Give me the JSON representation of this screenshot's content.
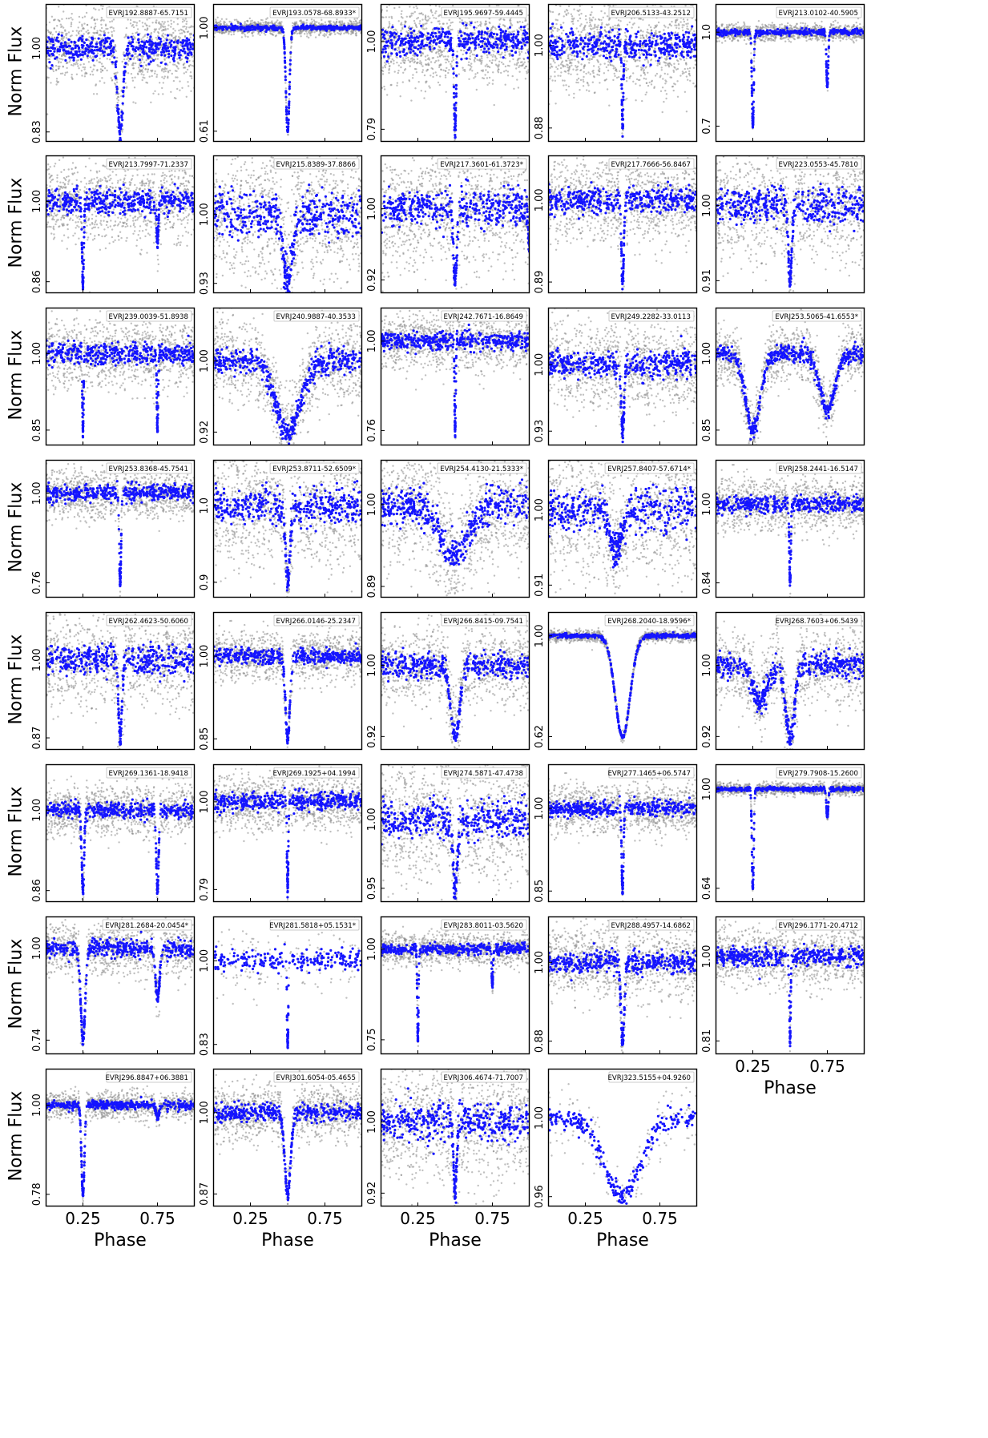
{
  "axis_labels": {
    "y": "Norm Flux",
    "x": "Phase"
  },
  "colors": {
    "binned": "#1414ff",
    "raw": "#8a8a8a",
    "frame": "#000000",
    "label_box": "#bbbbbb"
  },
  "chart_data": [
    {
      "type": "scatter",
      "title": "EVRJ192.8887-65.7151",
      "xlabel": "",
      "ylabel": "Norm Flux",
      "yticks": [
        "1.00",
        "0.83"
      ],
      "xticks": [],
      "ylim": [
        0.81,
        1.09
      ],
      "noise": 0.035,
      "dips": [
        {
          "phase": 0.5,
          "depth": 0.17,
          "width": 0.018
        }
      ],
      "grid": false
    },
    {
      "type": "scatter",
      "title": "EVRJ193.0578-68.8933*",
      "xlabel": "",
      "ylabel": "",
      "yticks": [
        "1.00",
        "0.61"
      ],
      "xticks": [],
      "ylim": [
        0.57,
        1.09
      ],
      "noise": 0.012,
      "dips": [
        {
          "phase": 0.5,
          "depth": 0.39,
          "width": 0.012
        }
      ],
      "grid": false
    },
    {
      "type": "scatter",
      "title": "EVRJ195.9697-59.4445",
      "xlabel": "",
      "ylabel": "",
      "yticks": [
        "1.00",
        "0.79"
      ],
      "xticks": [],
      "ylim": [
        0.76,
        1.09
      ],
      "noise": 0.045,
      "dips": [
        {
          "phase": 0.5,
          "depth": 0.21,
          "width": 0.007
        }
      ],
      "grid": false
    },
    {
      "type": "scatter",
      "title": "EVRJ206.5133-43.2512",
      "xlabel": "",
      "ylabel": "",
      "yticks": [
        "1.00",
        "0.88"
      ],
      "xticks": [],
      "ylim": [
        0.86,
        1.06
      ],
      "noise": 0.03,
      "dips": [
        {
          "phase": 0.5,
          "depth": 0.12,
          "width": 0.005
        }
      ],
      "grid": false
    },
    {
      "type": "scatter",
      "title": "EVRJ213.0102-40.5905",
      "xlabel": "",
      "ylabel": "",
      "yticks": [
        "1.0",
        "0.7"
      ],
      "xticks": [],
      "ylim": [
        0.65,
        1.09
      ],
      "noise": 0.012,
      "dips": [
        {
          "phase": 0.25,
          "depth": 0.3,
          "width": 0.006
        },
        {
          "phase": 0.75,
          "depth": 0.17,
          "width": 0.006
        }
      ],
      "grid": false
    },
    {
      "type": "scatter",
      "title": "EVRJ213.7997-71.2337",
      "xlabel": "",
      "ylabel": "Norm Flux",
      "yticks": [
        "1.00",
        "0.86"
      ],
      "xticks": [],
      "ylim": [
        0.84,
        1.08
      ],
      "noise": 0.03,
      "dips": [
        {
          "phase": 0.25,
          "depth": 0.14,
          "width": 0.006
        },
        {
          "phase": 0.75,
          "depth": 0.07,
          "width": 0.006
        }
      ],
      "grid": false
    },
    {
      "type": "scatter",
      "title": "EVRJ215.8389-37.8866",
      "xlabel": "",
      "ylabel": "",
      "yticks": [
        "1.00",
        "0.93"
      ],
      "xticks": [],
      "ylim": [
        0.92,
        1.06
      ],
      "noise": 0.03,
      "dips": [
        {
          "phase": 0.5,
          "depth": 0.07,
          "width": 0.03
        }
      ],
      "grid": false
    },
    {
      "type": "scatter",
      "title": "EVRJ217.3601-61.3723*",
      "xlabel": "",
      "ylabel": "",
      "yticks": [
        "1.00",
        "0.92"
      ],
      "xticks": [],
      "ylim": [
        0.905,
        1.06
      ],
      "noise": 0.03,
      "dips": [
        {
          "phase": 0.5,
          "depth": 0.08,
          "width": 0.012
        },
        {
          "phase": 1.0,
          "depth": 0.04,
          "width": 0.01
        }
      ],
      "grid": false
    },
    {
      "type": "scatter",
      "title": "EVRJ217.7666-56.8467",
      "xlabel": "",
      "ylabel": "",
      "yticks": [
        "1.00",
        "0.89"
      ],
      "xticks": [],
      "ylim": [
        0.875,
        1.06
      ],
      "noise": 0.025,
      "dips": [
        {
          "phase": 0.5,
          "depth": 0.11,
          "width": 0.008
        }
      ],
      "grid": false
    },
    {
      "type": "scatter",
      "title": "EVRJ223.0553-45.7810",
      "xlabel": "",
      "ylabel": "",
      "yticks": [
        "1.00",
        "0.91"
      ],
      "xticks": [],
      "ylim": [
        0.895,
        1.06
      ],
      "noise": 0.03,
      "dips": [
        {
          "phase": 0.5,
          "depth": 0.09,
          "width": 0.012
        }
      ],
      "grid": false
    },
    {
      "type": "scatter",
      "title": "EVRJ239.0039-51.8938",
      "xlabel": "",
      "ylabel": "Norm Flux",
      "yticks": [
        "1.00",
        "0.85"
      ],
      "xticks": [],
      "ylim": [
        0.82,
        1.09
      ],
      "noise": 0.03,
      "dips": [
        {
          "phase": 0.25,
          "depth": 0.15,
          "width": 0.004
        },
        {
          "phase": 0.75,
          "depth": 0.15,
          "width": 0.004
        }
      ],
      "grid": false
    },
    {
      "type": "scatter",
      "title": "EVRJ240.9887-40.3533",
      "xlabel": "",
      "ylabel": "",
      "yticks": [
        "1.00",
        "0.92"
      ],
      "xticks": [],
      "ylim": [
        0.905,
        1.06
      ],
      "noise": 0.02,
      "dips": [
        {
          "phase": 0.5,
          "depth": 0.08,
          "width": 0.08
        }
      ],
      "grid": false
    },
    {
      "type": "scatter",
      "title": "EVRJ242.7671-16.8649",
      "xlabel": "",
      "ylabel": "",
      "yticks": [
        "1.00",
        "0.76"
      ],
      "xticks": [],
      "ylim": [
        0.72,
        1.09
      ],
      "noise": 0.035,
      "dips": [
        {
          "phase": 0.5,
          "depth": 0.24,
          "width": 0.004
        }
      ],
      "grid": false
    },
    {
      "type": "scatter",
      "title": "EVRJ249.2282-33.0113",
      "xlabel": "",
      "ylabel": "",
      "yticks": [
        "1.00",
        "0.93"
      ],
      "xticks": [],
      "ylim": [
        0.915,
        1.06
      ],
      "noise": 0.02,
      "dips": [
        {
          "phase": 0.5,
          "depth": 0.07,
          "width": 0.01
        }
      ],
      "grid": false
    },
    {
      "type": "scatter",
      "title": "EVRJ253.5065-41.6553*",
      "xlabel": "",
      "ylabel": "",
      "yticks": [
        "1.00",
        "0.85"
      ],
      "xticks": [],
      "ylim": [
        0.82,
        1.09
      ],
      "noise": 0.025,
      "dips": [
        {
          "phase": 0.25,
          "depth": 0.15,
          "width": 0.05
        },
        {
          "phase": 0.75,
          "depth": 0.11,
          "width": 0.05
        }
      ],
      "grid": false
    },
    {
      "type": "scatter",
      "title": "EVRJ253.8368-45.7541",
      "xlabel": "",
      "ylabel": "Norm Flux",
      "yticks": [
        "1.00",
        "0.76"
      ],
      "xticks": [],
      "ylim": [
        0.72,
        1.09
      ],
      "noise": 0.03,
      "dips": [
        {
          "phase": 0.5,
          "depth": 0.24,
          "width": 0.006
        }
      ],
      "grid": false
    },
    {
      "type": "scatter",
      "title": "EVRJ253.8711-52.6509*",
      "xlabel": "",
      "ylabel": "",
      "yticks": [
        "1.0",
        "0.9"
      ],
      "xticks": [],
      "ylim": [
        0.88,
        1.06
      ],
      "noise": 0.035,
      "dips": [
        {
          "phase": 0.5,
          "depth": 0.1,
          "width": 0.015
        }
      ],
      "grid": false
    },
    {
      "type": "scatter",
      "title": "EVRJ254.4130-21.5333*",
      "xlabel": "",
      "ylabel": "",
      "yticks": [
        "1.00",
        "0.89"
      ],
      "xticks": [],
      "ylim": [
        0.875,
        1.06
      ],
      "noise": 0.035,
      "dips": [
        {
          "phase": 0.5,
          "depth": 0.07,
          "width": 0.09
        }
      ],
      "grid": false
    },
    {
      "type": "scatter",
      "title": "EVRJ257.8407-57.6714*",
      "xlabel": "",
      "ylabel": "",
      "yticks": [
        "1.00",
        "0.91"
      ],
      "xticks": [],
      "ylim": [
        0.895,
        1.06
      ],
      "noise": 0.035,
      "dips": [
        {
          "phase": 0.45,
          "depth": 0.05,
          "width": 0.04
        }
      ],
      "grid": false
    },
    {
      "type": "scatter",
      "title": "EVRJ258.2441-16.5147",
      "xlabel": "",
      "ylabel": "",
      "yticks": [
        "1.00",
        "0.84"
      ],
      "xticks": [],
      "ylim": [
        0.81,
        1.09
      ],
      "noise": 0.025,
      "dips": [
        {
          "phase": 0.5,
          "depth": 0.16,
          "width": 0.005
        }
      ],
      "grid": false
    },
    {
      "type": "scatter",
      "title": "EVRJ262.4623-50.6060",
      "xlabel": "",
      "ylabel": "Norm Flux",
      "yticks": [
        "1.00",
        "0.87"
      ],
      "xticks": [],
      "ylim": [
        0.85,
        1.08
      ],
      "noise": 0.035,
      "dips": [
        {
          "phase": 0.5,
          "depth": 0.13,
          "width": 0.012
        }
      ],
      "grid": false
    },
    {
      "type": "scatter",
      "title": "EVRJ266.0146-25.2347",
      "xlabel": "",
      "ylabel": "",
      "yticks": [
        "1.00",
        "0.85"
      ],
      "xticks": [],
      "ylim": [
        0.83,
        1.08
      ],
      "noise": 0.02,
      "dips": [
        {
          "phase": 0.5,
          "depth": 0.15,
          "width": 0.015
        }
      ],
      "grid": false
    },
    {
      "type": "scatter",
      "title": "EVRJ266.8415-09.7541",
      "xlabel": "",
      "ylabel": "",
      "yticks": [
        "1.00",
        "0.92"
      ],
      "xticks": [],
      "ylim": [
        0.905,
        1.06
      ],
      "noise": 0.02,
      "dips": [
        {
          "phase": 0.5,
          "depth": 0.08,
          "width": 0.03
        }
      ],
      "grid": false
    },
    {
      "type": "scatter",
      "title": "EVRJ268.2040-18.9596*",
      "xlabel": "",
      "ylabel": "",
      "yticks": [
        "1.00",
        "0.62"
      ],
      "xticks": [],
      "ylim": [
        0.57,
        1.09
      ],
      "noise": 0.01,
      "dips": [
        {
          "phase": 0.5,
          "depth": 0.38,
          "width": 0.05
        }
      ],
      "grid": false
    },
    {
      "type": "scatter",
      "title": "EVRJ268.7603+06.5439",
      "xlabel": "",
      "ylabel": "",
      "yticks": [
        "1.00",
        "0.92"
      ],
      "xticks": [],
      "ylim": [
        0.905,
        1.06
      ],
      "noise": 0.02,
      "dips": [
        {
          "phase": 0.5,
          "depth": 0.08,
          "width": 0.03
        },
        {
          "phase": 0.3,
          "depth": 0.04,
          "width": 0.05
        }
      ],
      "grid": false
    },
    {
      "type": "scatter",
      "title": "EVRJ269.1361-18.9418",
      "xlabel": "",
      "ylabel": "Norm Flux",
      "yticks": [
        "1.00",
        "0.86"
      ],
      "xticks": [],
      "ylim": [
        0.84,
        1.08
      ],
      "noise": 0.02,
      "dips": [
        {
          "phase": 0.25,
          "depth": 0.14,
          "width": 0.008
        },
        {
          "phase": 0.75,
          "depth": 0.14,
          "width": 0.008
        }
      ],
      "grid": false
    },
    {
      "type": "scatter",
      "title": "EVRJ269.1925+04.1994",
      "xlabel": "",
      "ylabel": "",
      "yticks": [
        "1.00",
        "0.79"
      ],
      "xticks": [],
      "ylim": [
        0.76,
        1.09
      ],
      "noise": 0.03,
      "dips": [
        {
          "phase": 0.5,
          "depth": 0.21,
          "width": 0.004
        }
      ],
      "grid": false
    },
    {
      "type": "scatter",
      "title": "EVRJ274.5871-47.4738",
      "xlabel": "",
      "ylabel": "",
      "yticks": [
        "1.00",
        "0.95"
      ],
      "xticks": [],
      "ylim": [
        0.94,
        1.04
      ],
      "noise": 0.02,
      "dips": [
        {
          "phase": 0.5,
          "depth": 0.05,
          "width": 0.015
        }
      ],
      "grid": false
    },
    {
      "type": "scatter",
      "title": "EVRJ277.1465+06.5747",
      "xlabel": "",
      "ylabel": "",
      "yticks": [
        "1.00",
        "0.85"
      ],
      "xticks": [],
      "ylim": [
        0.83,
        1.08
      ],
      "noise": 0.02,
      "dips": [
        {
          "phase": 0.5,
          "depth": 0.15,
          "width": 0.006
        }
      ],
      "grid": false
    },
    {
      "type": "scatter",
      "title": "EVRJ279.7908-15.2600",
      "xlabel": "",
      "ylabel": "",
      "yticks": [
        "1.00",
        "0.64"
      ],
      "xticks": [],
      "ylim": [
        0.59,
        1.09
      ],
      "noise": 0.01,
      "dips": [
        {
          "phase": 0.25,
          "depth": 0.36,
          "width": 0.006
        },
        {
          "phase": 0.75,
          "depth": 0.1,
          "width": 0.006
        }
      ],
      "grid": false
    },
    {
      "type": "scatter",
      "title": "EVRJ281.2684-20.0454*",
      "xlabel": "",
      "ylabel": "Norm Flux",
      "yticks": [
        "1.00",
        "0.74"
      ],
      "xticks": [],
      "ylim": [
        0.7,
        1.09
      ],
      "noise": 0.035,
      "dips": [
        {
          "phase": 0.25,
          "depth": 0.26,
          "width": 0.015
        },
        {
          "phase": 0.75,
          "depth": 0.14,
          "width": 0.015
        }
      ],
      "grid": false
    },
    {
      "type": "scatter",
      "title": "EVRJ281.5818+05.1531*",
      "xlabel": "",
      "ylabel": "",
      "yticks": [
        "1.00",
        "0.83"
      ],
      "xticks": [],
      "ylim": [
        0.81,
        1.09
      ],
      "noise": 0.03,
      "dips": [
        {
          "phase": 0.5,
          "depth": 0.17,
          "width": 0.004
        }
      ],
      "grid": false,
      "sparse": true
    },
    {
      "type": "scatter",
      "title": "EVRJ283.8011-03.5620",
      "xlabel": "",
      "ylabel": "",
      "yticks": [
        "1.00",
        "0.75"
      ],
      "xticks": [],
      "ylim": [
        0.71,
        1.09
      ],
      "noise": 0.02,
      "dips": [
        {
          "phase": 0.25,
          "depth": 0.25,
          "width": 0.004
        },
        {
          "phase": 0.75,
          "depth": 0.1,
          "width": 0.004
        }
      ],
      "grid": false
    },
    {
      "type": "scatter",
      "title": "EVRJ288.4957-14.6862",
      "xlabel": "",
      "ylabel": "",
      "yticks": [
        "1.00",
        "0.88"
      ],
      "xticks": [],
      "ylim": [
        0.86,
        1.07
      ],
      "noise": 0.025,
      "dips": [
        {
          "phase": 0.5,
          "depth": 0.12,
          "width": 0.012
        }
      ],
      "grid": false
    },
    {
      "type": "scatter",
      "title": "EVRJ296.1771-20.4712",
      "xlabel": "Phase",
      "ylabel": "",
      "yticks": [
        "1.00",
        "0.81"
      ],
      "xticks": [
        "0.25",
        "0.75"
      ],
      "ylim": [
        0.78,
        1.09
      ],
      "noise": 0.03,
      "dips": [
        {
          "phase": 0.5,
          "depth": 0.19,
          "width": 0.004
        }
      ],
      "grid": false
    },
    {
      "type": "scatter",
      "title": "EVRJ296.8847+06.3881",
      "xlabel": "Phase",
      "ylabel": "Norm Flux",
      "yticks": [
        "1.00",
        "0.78"
      ],
      "xticks": [
        "0.25",
        "0.75"
      ],
      "ylim": [
        0.75,
        1.09
      ],
      "noise": 0.015,
      "dips": [
        {
          "phase": 0.25,
          "depth": 0.22,
          "width": 0.01
        },
        {
          "phase": 0.75,
          "depth": 0.03,
          "width": 0.01
        }
      ],
      "grid": false
    },
    {
      "type": "scatter",
      "title": "EVRJ301.6054-05.4655",
      "xlabel": "Phase",
      "ylabel": "",
      "yticks": [
        "1.00",
        "0.87"
      ],
      "xticks": [
        "0.25",
        "0.75"
      ],
      "ylim": [
        0.85,
        1.07
      ],
      "noise": 0.02,
      "dips": [
        {
          "phase": 0.5,
          "depth": 0.13,
          "width": 0.02
        }
      ],
      "grid": false
    },
    {
      "type": "scatter",
      "title": "EVRJ306.4674-71.7007",
      "xlabel": "Phase",
      "ylabel": "",
      "yticks": [
        "1.00",
        "0.92"
      ],
      "xticks": [
        "0.25",
        "0.75"
      ],
      "ylim": [
        0.905,
        1.06
      ],
      "noise": 0.03,
      "dips": [
        {
          "phase": 0.5,
          "depth": 0.08,
          "width": 0.01
        }
      ],
      "grid": false
    },
    {
      "type": "scatter",
      "title": "EVRJ323.5155+04.9260",
      "xlabel": "Phase",
      "ylabel": "",
      "yticks": [
        "1.00",
        "0.96"
      ],
      "xticks": [
        "0.25",
        "0.75"
      ],
      "ylim": [
        0.955,
        1.025
      ],
      "noise": 0.008,
      "dips": [
        {
          "phase": 0.5,
          "depth": 0.04,
          "width": 0.12
        }
      ],
      "grid": false,
      "sparse": true
    }
  ]
}
